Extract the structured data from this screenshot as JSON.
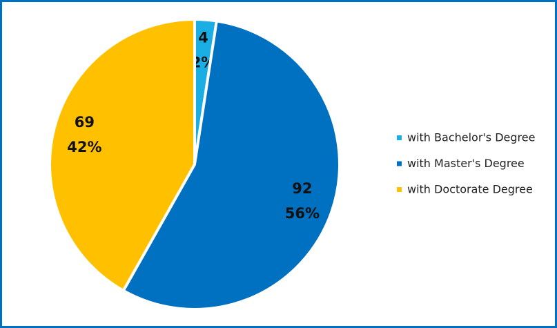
{
  "chart_data": {
    "type": "pie",
    "categories": [
      "with Bachelor's Degree",
      "with Master's Degree",
      "with Doctorate Degree"
    ],
    "values": [
      4,
      92,
      69
    ],
    "percent_labels": [
      "2%",
      "56%",
      "42%"
    ],
    "colors": [
      "#1aaee5",
      "#0070c0",
      "#ffc000"
    ],
    "legend": "right"
  }
}
